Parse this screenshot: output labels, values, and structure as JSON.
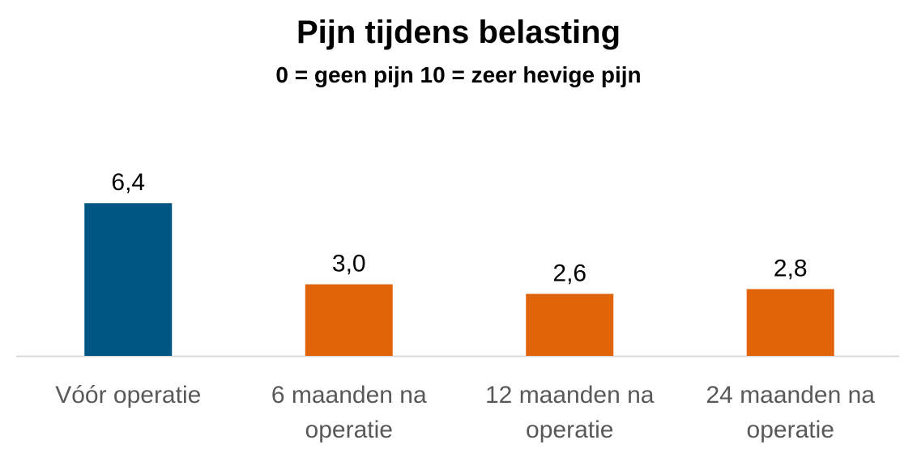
{
  "chart_data": {
    "type": "bar",
    "title": "Pijn tijdens belasting",
    "subtitle": "0 = geen pijn  10 = zeer hevige pijn",
    "categories": [
      [
        "Vóór operatie"
      ],
      [
        "6 maanden na",
        "operatie"
      ],
      [
        "12 maanden na",
        "operatie"
      ],
      [
        "24 maanden na",
        "operatie"
      ]
    ],
    "values": [
      6.4,
      3.0,
      2.6,
      2.8
    ],
    "data_labels": [
      "6,4",
      "3,0",
      "2,6",
      "2,8"
    ],
    "bar_colors": [
      "#005682",
      "#e2640a",
      "#e2640a",
      "#e2640a"
    ],
    "xlabel": "",
    "ylabel": "",
    "ylim": [
      0,
      10
    ],
    "grid": false,
    "legend": "none"
  },
  "colors": {
    "label_text": "#595959",
    "value_text": "#000000",
    "axis_line": "#d9d9d9"
  }
}
